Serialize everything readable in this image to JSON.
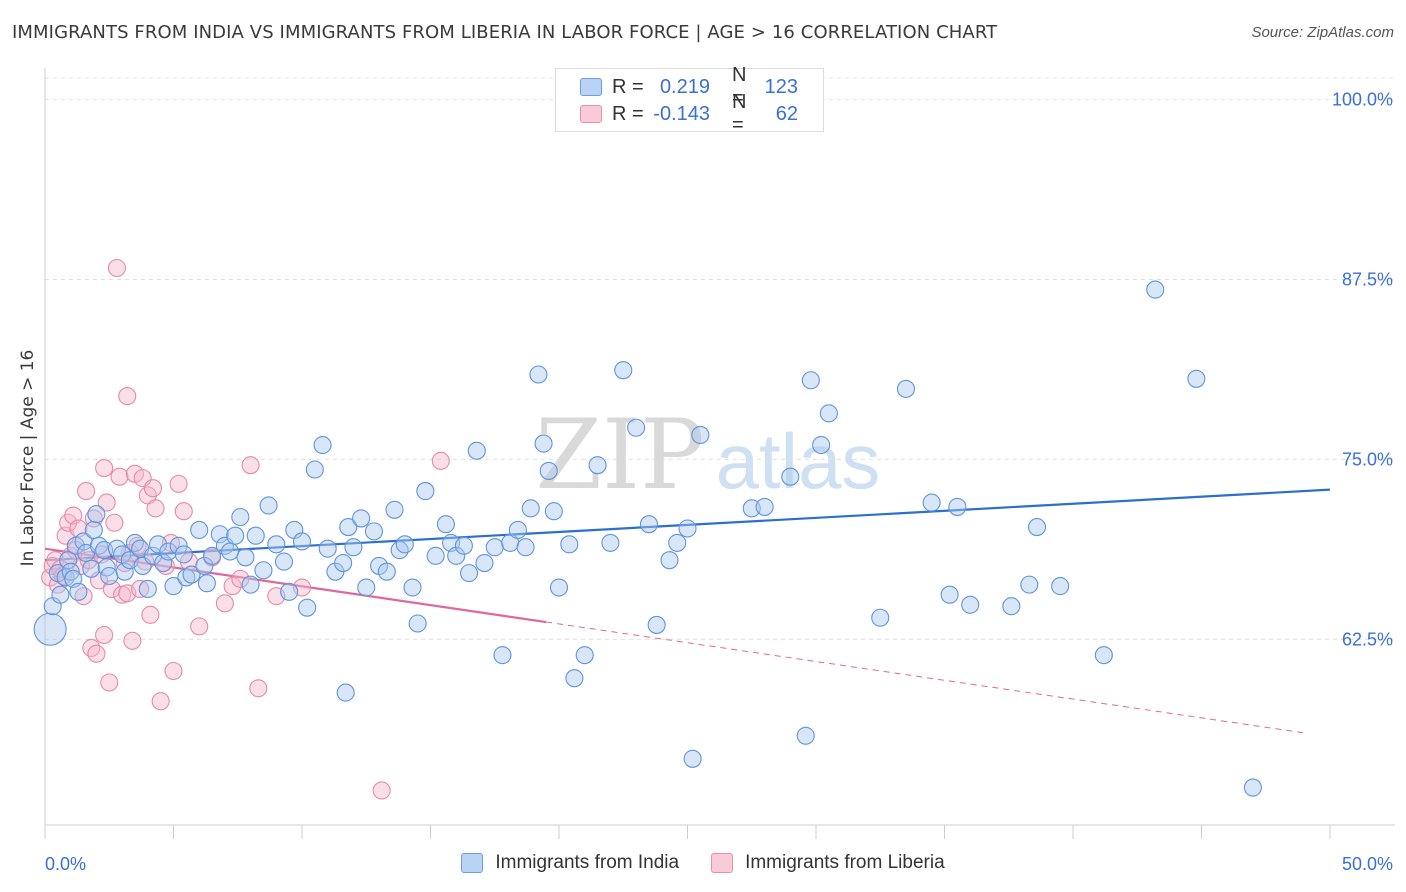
{
  "title": "IMMIGRANTS FROM INDIA VS IMMIGRANTS FROM LIBERIA IN LABOR FORCE | AGE > 16 CORRELATION CHART",
  "source": "Source: ZipAtlas.com",
  "watermark": {
    "zip": "ZIP",
    "atlas": "atlas"
  },
  "legend_top": {
    "india": {
      "r_label": "R =",
      "r_value": "0.219",
      "n_label": "N =",
      "n_value": "123"
    },
    "liberia": {
      "r_label": "R =",
      "r_value": "-0.143",
      "n_label": "N =",
      "n_value": "62"
    }
  },
  "legend_bottom": {
    "india": "Immigrants from India",
    "liberia": "Immigrants from Liberia"
  },
  "colors": {
    "india_fill": "#a9c8f0",
    "india_stroke": "#5f95dc",
    "india_line": "#2c6fcc",
    "liberia_fill": "#f6b8cb",
    "liberia_stroke": "#e58aa8",
    "liberia_line": "#e0679a",
    "tick_label": "#3a6fd8"
  },
  "chart_data": {
    "type": "scatter",
    "title": "IMMIGRANTS FROM INDIA VS IMMIGRANTS FROM LIBERIA IN LABOR FORCE | AGE > 16 CORRELATION CHART",
    "xlabel": "",
    "ylabel": "In Labor Force | Age > 16",
    "xlim": [
      0,
      50
    ],
    "ylim": [
      49.6,
      101.5
    ],
    "x_tick_labels": [
      "0.0%",
      "50.0%"
    ],
    "y_ticks": [
      62.5,
      75.0,
      87.5,
      100.0
    ],
    "y_tick_labels": [
      "62.5%",
      "75.0%",
      "87.5%",
      "100.0%"
    ],
    "grid": true,
    "legend_position": "bottom",
    "series": [
      {
        "name": "Immigrants from India",
        "trend": {
          "x": [
            0,
            50
          ],
          "y": [
            68.0,
            72.9
          ]
        },
        "points": [
          [
            0.2,
            63.2
          ],
          [
            0.3,
            64.8
          ],
          [
            0.5,
            67.1
          ],
          [
            0.6,
            65.6
          ],
          [
            0.8,
            66.8
          ],
          [
            0.9,
            68.0
          ],
          [
            1.0,
            67.2
          ],
          [
            1.1,
            66.7
          ],
          [
            1.2,
            69.0
          ],
          [
            1.3,
            65.8
          ],
          [
            1.5,
            69.3
          ],
          [
            1.6,
            68.5
          ],
          [
            1.8,
            67.4
          ],
          [
            1.9,
            70.1
          ],
          [
            2.0,
            71.2
          ],
          [
            2.1,
            69.0
          ],
          [
            2.3,
            68.7
          ],
          [
            2.4,
            67.5
          ],
          [
            2.5,
            66.9
          ],
          [
            2.8,
            68.8
          ],
          [
            3.0,
            68.4
          ],
          [
            3.1,
            67.2
          ],
          [
            3.3,
            68.0
          ],
          [
            3.5,
            69.2
          ],
          [
            3.7,
            68.8
          ],
          [
            3.8,
            67.6
          ],
          [
            4.0,
            66.0
          ],
          [
            4.2,
            68.3
          ],
          [
            4.4,
            69.1
          ],
          [
            4.6,
            67.8
          ],
          [
            4.8,
            68.6
          ],
          [
            5.0,
            66.2
          ],
          [
            5.2,
            69.0
          ],
          [
            5.4,
            68.4
          ],
          [
            5.5,
            66.8
          ],
          [
            5.7,
            67.0
          ],
          [
            6.0,
            70.1
          ],
          [
            6.2,
            67.6
          ],
          [
            6.3,
            66.4
          ],
          [
            6.5,
            68.3
          ],
          [
            6.8,
            69.8
          ],
          [
            7.0,
            69.0
          ],
          [
            7.2,
            68.6
          ],
          [
            7.4,
            69.7
          ],
          [
            7.6,
            71.0
          ],
          [
            7.8,
            68.2
          ],
          [
            8.0,
            66.3
          ],
          [
            8.2,
            69.7
          ],
          [
            8.5,
            67.3
          ],
          [
            8.7,
            71.8
          ],
          [
            9.0,
            69.1
          ],
          [
            9.3,
            67.9
          ],
          [
            9.5,
            65.8
          ],
          [
            9.7,
            70.1
          ],
          [
            10.0,
            69.3
          ],
          [
            10.2,
            64.7
          ],
          [
            10.5,
            74.3
          ],
          [
            10.8,
            76.0
          ],
          [
            11.0,
            68.8
          ],
          [
            11.3,
            67.2
          ],
          [
            11.6,
            67.8
          ],
          [
            11.8,
            70.3
          ],
          [
            12.0,
            68.9
          ],
          [
            12.3,
            70.9
          ],
          [
            12.5,
            66.1
          ],
          [
            12.8,
            70.0
          ],
          [
            13.0,
            67.6
          ],
          [
            13.3,
            67.2
          ],
          [
            13.6,
            71.5
          ],
          [
            13.8,
            68.7
          ],
          [
            14.0,
            69.1
          ],
          [
            14.3,
            66.1
          ],
          [
            14.5,
            63.6
          ],
          [
            14.8,
            72.8
          ],
          [
            15.2,
            68.3
          ],
          [
            15.6,
            70.5
          ],
          [
            15.8,
            69.2
          ],
          [
            16.0,
            68.3
          ],
          [
            16.3,
            69.0
          ],
          [
            16.5,
            67.1
          ],
          [
            16.8,
            75.6
          ],
          [
            17.1,
            67.8
          ],
          [
            17.5,
            68.9
          ],
          [
            17.8,
            61.4
          ],
          [
            18.1,
            69.2
          ],
          [
            18.4,
            70.1
          ],
          [
            18.7,
            68.9
          ],
          [
            18.9,
            71.6
          ],
          [
            19.2,
            80.9
          ],
          [
            19.4,
            76.1
          ],
          [
            19.6,
            74.2
          ],
          [
            19.8,
            71.4
          ],
          [
            20.0,
            66.1
          ],
          [
            20.4,
            69.1
          ],
          [
            21.0,
            61.4
          ],
          [
            21.5,
            74.6
          ],
          [
            22.0,
            69.2
          ],
          [
            22.5,
            81.2
          ],
          [
            23.0,
            77.2
          ],
          [
            23.5,
            70.5
          ],
          [
            23.8,
            63.5
          ],
          [
            24.3,
            68.0
          ],
          [
            24.6,
            69.2
          ],
          [
            25.0,
            70.2
          ],
          [
            25.2,
            54.2
          ],
          [
            25.5,
            76.7
          ],
          [
            27.5,
            71.6
          ],
          [
            28.0,
            71.7
          ],
          [
            29.0,
            73.8
          ],
          [
            29.6,
            55.8
          ],
          [
            29.8,
            80.5
          ],
          [
            30.2,
            76.0
          ],
          [
            30.5,
            78.2
          ],
          [
            32.5,
            64.0
          ],
          [
            33.5,
            79.9
          ],
          [
            34.5,
            72.0
          ],
          [
            35.2,
            65.6
          ],
          [
            35.5,
            71.7
          ],
          [
            36.0,
            64.9
          ],
          [
            37.6,
            64.8
          ],
          [
            38.3,
            66.3
          ],
          [
            38.6,
            70.3
          ],
          [
            39.5,
            66.2
          ],
          [
            43.2,
            86.8
          ],
          [
            44.8,
            80.6
          ],
          [
            47.0,
            52.2
          ],
          [
            20.6,
            59.8
          ],
          [
            11.7,
            58.8
          ],
          [
            41.2,
            61.4
          ]
        ]
      },
      {
        "name": "Immigrants from Liberia",
        "trend": {
          "x": [
            0,
            19.5
          ],
          "y": [
            68.8,
            63.7
          ]
        },
        "trend_dashed": {
          "x": [
            19.5,
            49.0
          ],
          "y": [
            63.7,
            56.0
          ]
        },
        "points": [
          [
            0.2,
            66.8
          ],
          [
            0.3,
            67.6
          ],
          [
            0.4,
            68.0
          ],
          [
            0.5,
            66.3
          ],
          [
            0.6,
            67.4
          ],
          [
            0.7,
            66.9
          ],
          [
            0.8,
            69.7
          ],
          [
            0.9,
            70.6
          ],
          [
            1.0,
            68.3
          ],
          [
            1.1,
            71.1
          ],
          [
            1.2,
            68.7
          ],
          [
            1.3,
            70.2
          ],
          [
            1.4,
            67.6
          ],
          [
            1.5,
            65.5
          ],
          [
            1.6,
            72.8
          ],
          [
            1.7,
            68.0
          ],
          [
            1.8,
            61.9
          ],
          [
            1.9,
            70.9
          ],
          [
            2.0,
            61.5
          ],
          [
            2.1,
            66.6
          ],
          [
            2.2,
            68.4
          ],
          [
            2.3,
            74.4
          ],
          [
            2.4,
            72.0
          ],
          [
            2.5,
            59.5
          ],
          [
            2.6,
            66.0
          ],
          [
            2.7,
            70.6
          ],
          [
            2.8,
            88.3
          ],
          [
            2.9,
            73.8
          ],
          [
            3.0,
            65.6
          ],
          [
            3.1,
            67.8
          ],
          [
            3.2,
            65.7
          ],
          [
            3.3,
            68.5
          ],
          [
            3.4,
            62.4
          ],
          [
            3.5,
            74.0
          ],
          [
            3.6,
            69.0
          ],
          [
            3.7,
            66.0
          ],
          [
            3.8,
            73.7
          ],
          [
            3.9,
            67.9
          ],
          [
            4.0,
            72.5
          ],
          [
            4.1,
            64.2
          ],
          [
            4.2,
            73.0
          ],
          [
            4.3,
            71.6
          ],
          [
            4.5,
            58.2
          ],
          [
            4.7,
            67.6
          ],
          [
            4.9,
            69.2
          ],
          [
            5.0,
            60.3
          ],
          [
            5.2,
            73.3
          ],
          [
            5.4,
            71.4
          ],
          [
            5.6,
            67.9
          ],
          [
            6.0,
            63.4
          ],
          [
            6.5,
            68.2
          ],
          [
            7.0,
            65.0
          ],
          [
            7.3,
            66.2
          ],
          [
            7.6,
            66.7
          ],
          [
            8.0,
            74.6
          ],
          [
            8.3,
            59.1
          ],
          [
            3.2,
            79.4
          ],
          [
            9.0,
            65.5
          ],
          [
            10.0,
            66.1
          ],
          [
            13.1,
            52.0
          ],
          [
            15.4,
            74.9
          ],
          [
            2.3,
            62.8
          ]
        ]
      }
    ]
  }
}
